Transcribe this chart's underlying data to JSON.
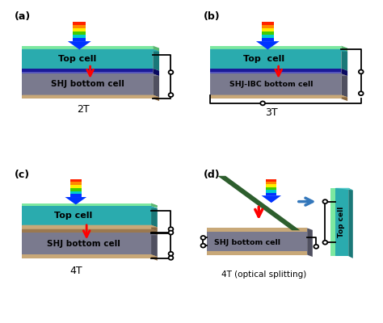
{
  "bg_color": "#ffffff",
  "teal_top": "#2aabae",
  "teal_dark": "#1a7878",
  "green_cap": "#7de8a0",
  "blue_layer": "#1a1a99",
  "purple_layer": "#5050bb",
  "gray_bottom": "#7a7a8e",
  "gray_dark": "#505060",
  "tan_base": "#c8a878",
  "tan_dark": "#8a6840",
  "dark_green_splitter": "#2d5e2d",
  "red_arrow": "#cc0000",
  "blue_arrow": "#3377bb",
  "rainbow_colors": [
    "#ff2200",
    "#ff8800",
    "#ffee00",
    "#44cc00",
    "#00cccc",
    "#0033ff"
  ],
  "panel_labels": [
    "(a)",
    "(b)",
    "(c)",
    "(d)"
  ],
  "bottom_labels": [
    "2T",
    "3T",
    "4T",
    "4T (optical splitting)"
  ]
}
